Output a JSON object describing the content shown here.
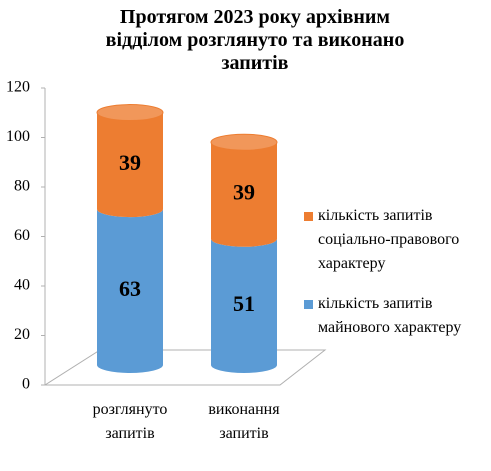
{
  "chart_data": {
    "type": "cylinder-stacked",
    "title": "Протягом 2023 року архівним відділом розглянуто та виконано запитів",
    "categories": [
      "розглянуто запитів",
      "виконання запитів"
    ],
    "series": [
      {
        "name": "кількість запитів майнового характеру",
        "color": "#5b9bd5",
        "values": [
          63,
          51
        ]
      },
      {
        "name": "кількість запитів соціально-правового характеру",
        "color": "#ed7d31",
        "values": [
          39,
          39
        ]
      }
    ],
    "ylim": [
      0,
      120
    ],
    "yticks": [
      0,
      20,
      40,
      60,
      80,
      100,
      120
    ],
    "legend": "right"
  }
}
